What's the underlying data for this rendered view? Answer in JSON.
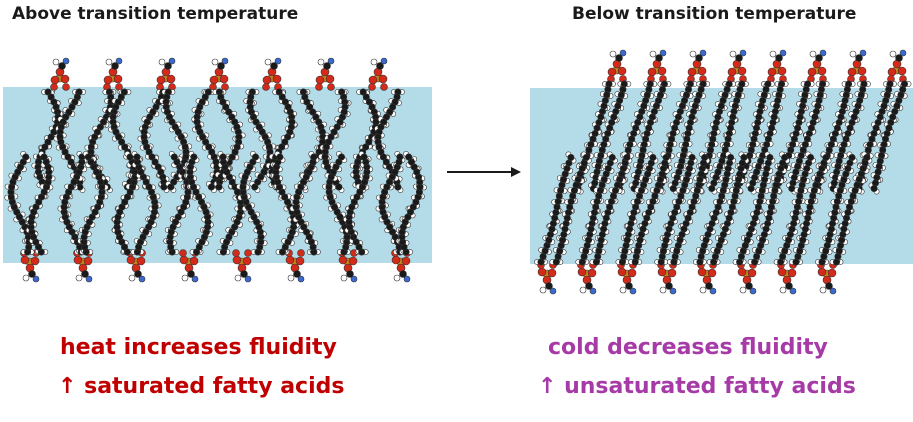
{
  "left": {
    "title": "Above transition temperature",
    "caption_line1": "heat increases fluidity",
    "caption_line2": "↑ saturated fatty acids"
  },
  "right": {
    "title": "Below transition temperature",
    "caption_line1": "cold decreases fluidity",
    "caption_line2": "↑ unsaturated fatty acids"
  },
  "colors": {
    "membrane": "#b4dce8",
    "heat_text": "#c00000",
    "cold_text": "#a63aa6",
    "carbon": "#1a1a1a",
    "hydrogen": "#ffffff",
    "oxygen": "#d42a1a",
    "phosphorus": "#c98a1a",
    "nitrogen": "#3a6ad0"
  }
}
